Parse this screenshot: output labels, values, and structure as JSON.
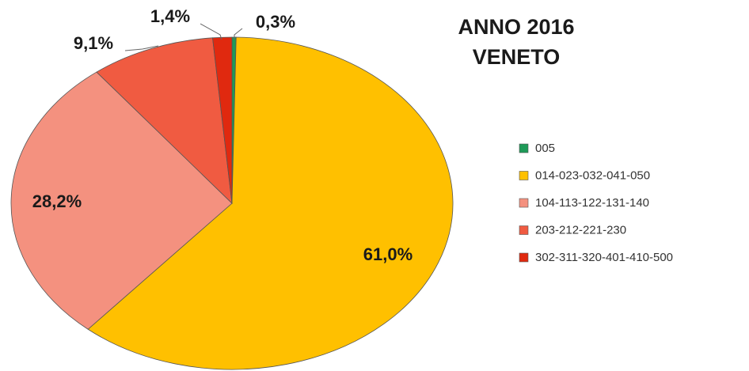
{
  "chart_data": {
    "type": "pie",
    "title": [
      "ANNO 2016",
      "VENETO"
    ],
    "categories": [
      "005",
      "014-023-032-041-050",
      "104-113-122-131-140",
      "203-212-221-230",
      "302-311-320-401-410-500"
    ],
    "values": [
      0.3,
      61.0,
      28.2,
      9.1,
      1.4
    ],
    "value_labels": [
      "0,3%",
      "61,0%",
      "28,2%",
      "9,1%",
      "1,4%"
    ],
    "colors": [
      "#1e9a58",
      "#ffc000",
      "#f4917f",
      "#f05b41",
      "#e0290f"
    ],
    "legend": "right"
  }
}
